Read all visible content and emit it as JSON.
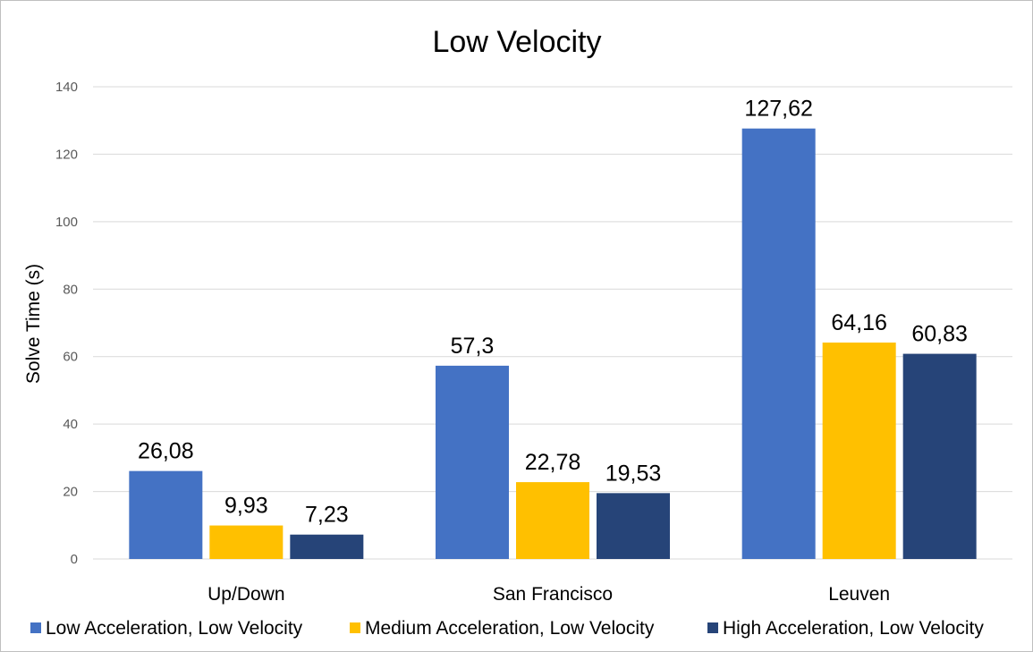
{
  "chart_data": {
    "type": "bar",
    "title": "Low Velocity",
    "xlabel": "",
    "ylabel": "Solve Time (s)",
    "ylim": [
      0,
      140
    ],
    "yticks": [
      0,
      20,
      40,
      60,
      80,
      100,
      120,
      140
    ],
    "categories": [
      "Up/Down",
      "San Francisco",
      "Leuven"
    ],
    "series": [
      {
        "name": "Low Acceleration, Low Velocity",
        "color": "#4472C4",
        "values": [
          26.08,
          57.3,
          127.62
        ],
        "labels": [
          "26,08",
          "57,3",
          "127,62"
        ]
      },
      {
        "name": "Medium Acceleration, Low Velocity",
        "color": "#FFC000",
        "values": [
          9.93,
          22.78,
          64.16
        ],
        "labels": [
          "9,93",
          "22,78",
          "64,16"
        ]
      },
      {
        "name": "High Acceleration, Low Velocity",
        "color": "#264478",
        "values": [
          7.23,
          19.53,
          60.83
        ],
        "labels": [
          "7,23",
          "19,53",
          "60,83"
        ]
      }
    ],
    "grid": true,
    "legend_position": "bottom",
    "gridline_color": "#d9d9d9"
  }
}
